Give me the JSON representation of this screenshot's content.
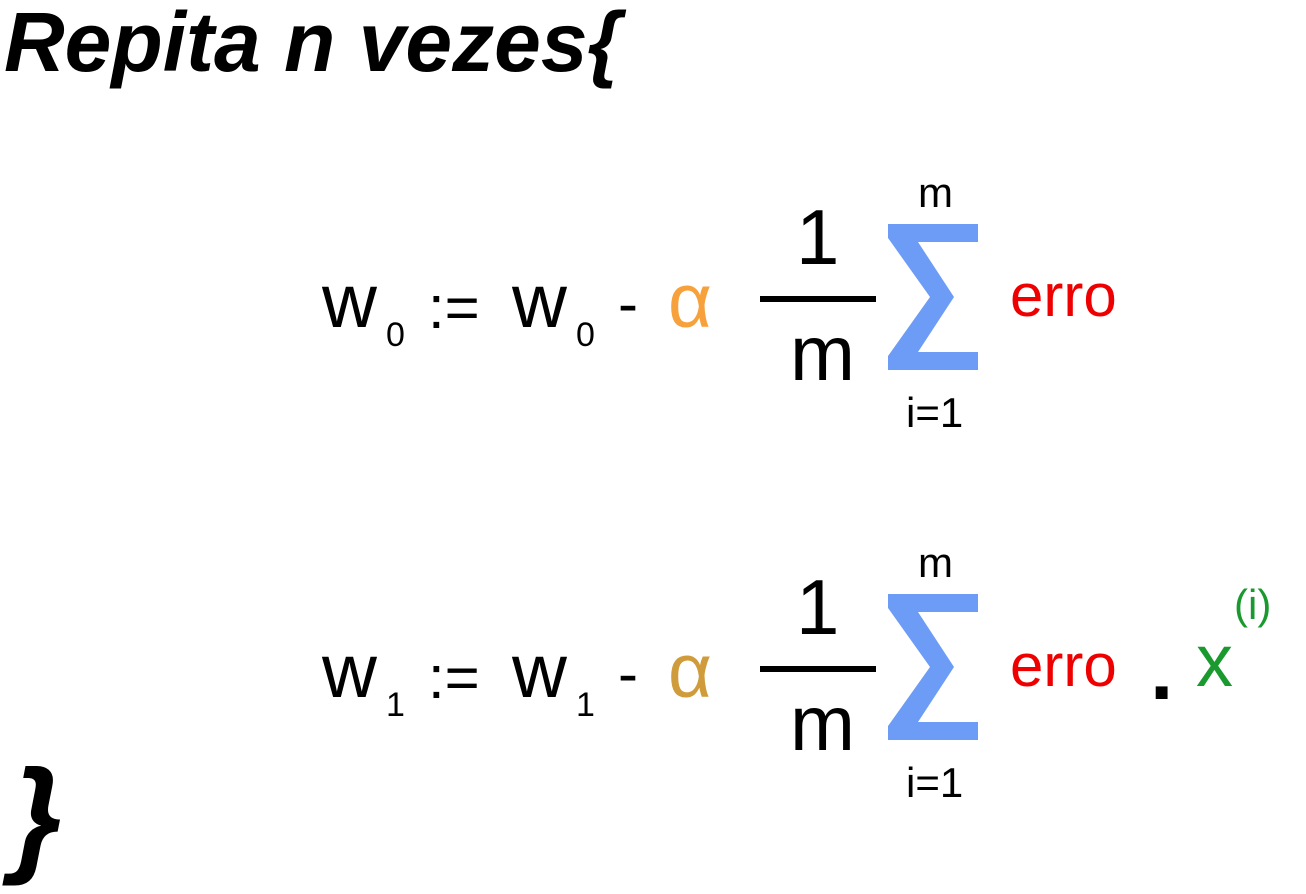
{
  "header": "Repita  n vezes{",
  "closing_brace": "}",
  "colors": {
    "text": "#000000",
    "alpha_row0": "#f7a13c",
    "alpha_row1": "#d09b3a",
    "sigma": "#6c9cf6",
    "erro": "#ef0000",
    "x": "#1a9a2e"
  },
  "equations": [
    {
      "lhs": "w",
      "lhs_sub": "0",
      "assign": ":=",
      "rhs": "w",
      "rhs_sub": "0",
      "minus": "-",
      "alpha": "α",
      "numerator": "1",
      "denominator": "m",
      "sum_upper": "m",
      "sum_lower": "i=1",
      "term": "erro"
    },
    {
      "lhs": "w",
      "lhs_sub": "1",
      "assign": ":=",
      "rhs": "w",
      "rhs_sub": "1",
      "minus": "-",
      "alpha": "α",
      "numerator": "1",
      "denominator": "m",
      "sum_upper": "m",
      "sum_lower": "i=1",
      "term": "erro",
      "times": ".",
      "x": "x",
      "x_sup": "(i)"
    }
  ]
}
